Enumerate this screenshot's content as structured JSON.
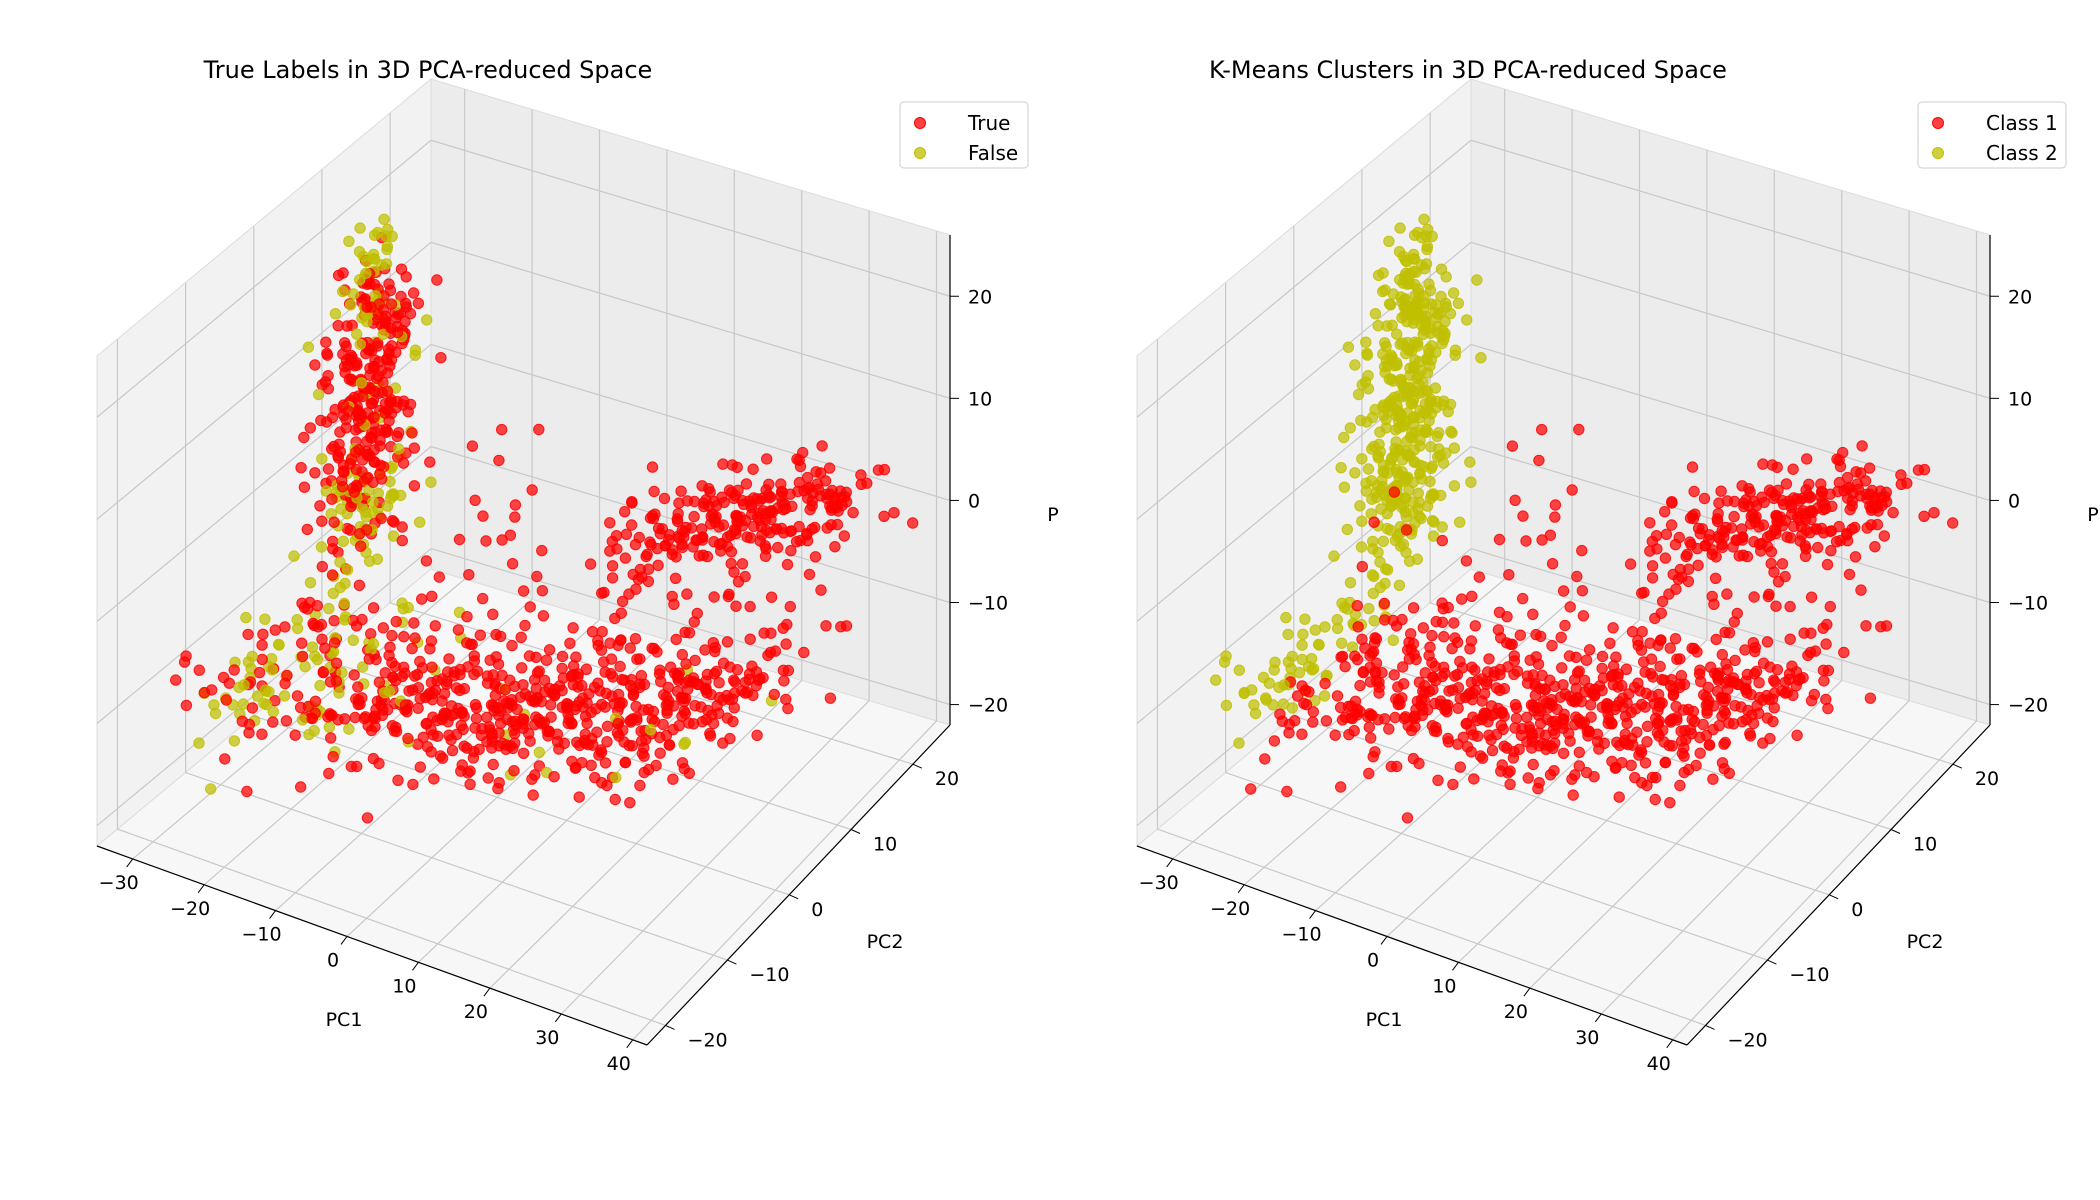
{
  "chart_data": [
    {
      "type": "scatter",
      "title": "True Labels in 3D PCA-reduced Space",
      "xlabel": "PC1",
      "ylabel": "PC2",
      "zlabel": "P",
      "xlim": [
        -35,
        42
      ],
      "ylim": [
        -23,
        26
      ],
      "zlim": [
        -22,
        26
      ],
      "xticks": [
        "−30",
        "−20",
        "−10",
        "0",
        "10",
        "20",
        "30",
        "40"
      ],
      "yticks": [
        "−20",
        "−10",
        "0",
        "10",
        "20"
      ],
      "zticks": [
        "−20",
        "−10",
        "0",
        "10",
        "20"
      ],
      "legend": "top-right",
      "grid": true,
      "series": [
        {
          "name": "True",
          "color": "#ff0000"
        },
        {
          "name": "False",
          "color": "#bfbf00"
        }
      ]
    },
    {
      "type": "scatter",
      "title": "K-Means Clusters in 3D PCA-reduced Space",
      "xlabel": "PC1",
      "ylabel": "PC2",
      "zlabel": "P",
      "xlim": [
        -35,
        42
      ],
      "ylim": [
        -23,
        26
      ],
      "zlim": [
        -22,
        26
      ],
      "xticks": [
        "−30",
        "−20",
        "−10",
        "0",
        "10",
        "20",
        "30",
        "40"
      ],
      "yticks": [
        "−20",
        "−10",
        "0",
        "10",
        "20"
      ],
      "zticks": [
        "−20",
        "−10",
        "0",
        "10",
        "20"
      ],
      "legend": "top-right",
      "grid": true,
      "series": [
        {
          "name": "Class 1",
          "color": "#ff0000"
        },
        {
          "name": "Class 2",
          "color": "#bfbf00"
        }
      ]
    }
  ]
}
